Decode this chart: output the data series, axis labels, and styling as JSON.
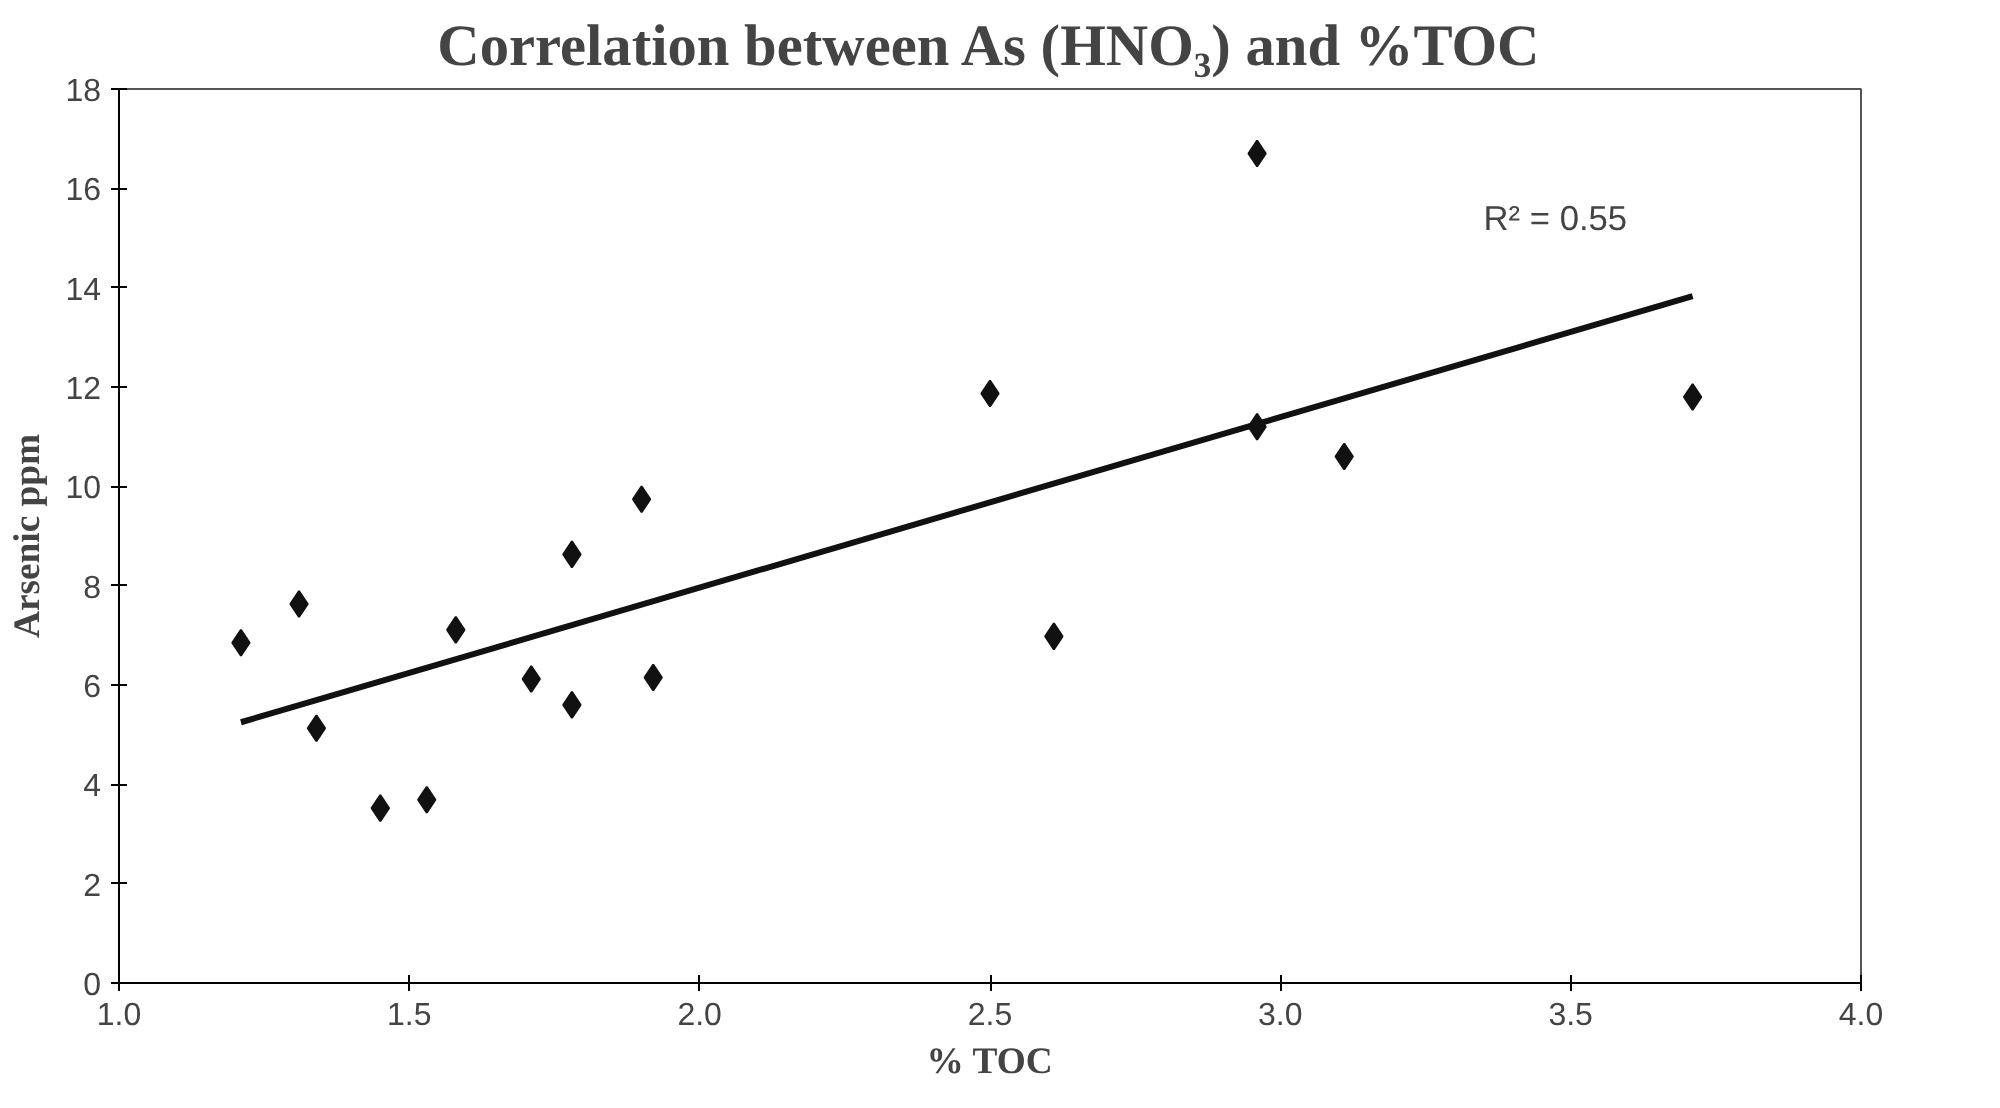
{
  "chart_data": {
    "type": "scatter",
    "title": "Correlation between As (HNO₃) and %TOC",
    "xlabel": "% TOC",
    "ylabel": "Arsenic ppm",
    "series": [
      {
        "marker": "diamond",
        "color": "#111111",
        "x": [
          1.21,
          1.31,
          1.34,
          1.45,
          1.53,
          1.58,
          1.71,
          1.78,
          1.78,
          1.9,
          1.92,
          2.5,
          2.61,
          2.96,
          2.96,
          3.11,
          3.71
        ],
        "values": [
          6.85,
          7.63,
          5.13,
          3.52,
          3.69,
          7.11,
          6.12,
          8.63,
          5.6,
          9.74,
          6.15,
          11.87,
          6.98,
          16.7,
          11.2,
          10.6,
          11.8
        ]
      },
      {
        "type": "line",
        "color": "#111111",
        "x": [
          1.21,
          3.71
        ],
        "values": [
          5.25,
          13.83
        ]
      }
    ],
    "annotations": [
      "R² = 0.55"
    ],
    "xlim": [
      1.0,
      4.0
    ],
    "ylim": [
      0,
      18
    ],
    "xticks": [
      {
        "value": 1.0,
        "label": "1.0"
      },
      {
        "value": 1.5,
        "label": "1.5"
      },
      {
        "value": 2.0,
        "label": "2.0"
      },
      {
        "value": 2.5,
        "label": "2.5"
      },
      {
        "value": 3.0,
        "label": "3.0"
      },
      {
        "value": 3.5,
        "label": "3.5"
      },
      {
        "value": 4.0,
        "label": "4.0"
      }
    ],
    "yticks": [
      0,
      2,
      4,
      6,
      8,
      10,
      12,
      14,
      16,
      18
    ],
    "grid": false,
    "line_style": "solid"
  }
}
